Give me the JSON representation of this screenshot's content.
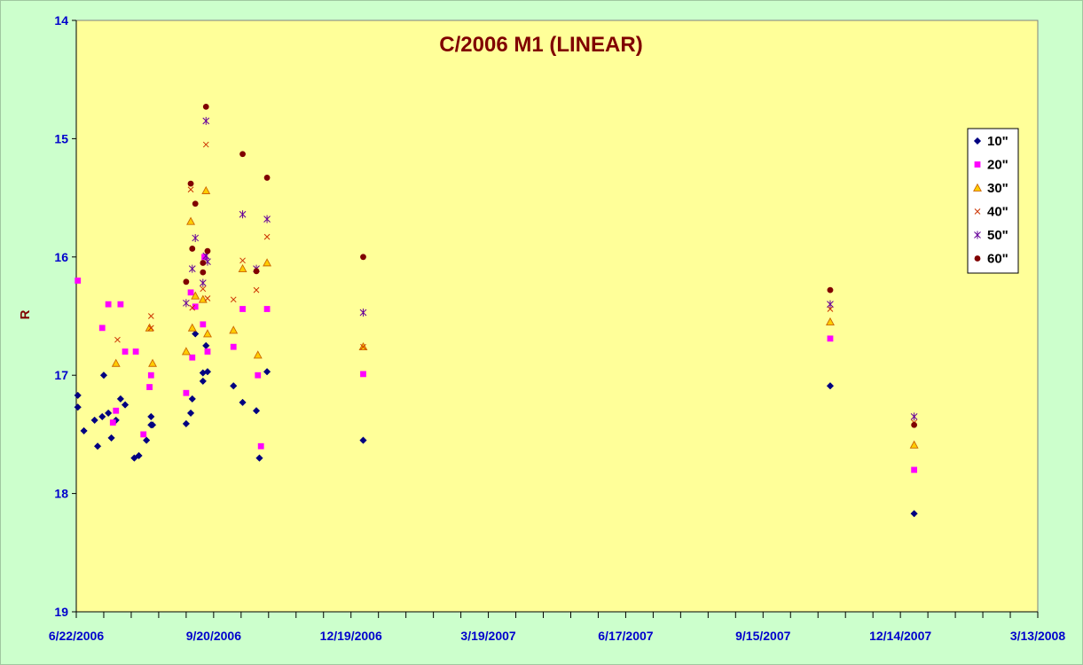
{
  "chart_data": {
    "type": "scatter",
    "title": "C/2006 M1 (LINEAR)",
    "xlabel": "",
    "ylabel": "R",
    "x_type": "date",
    "xlim": [
      "2006-06-22",
      "2008-03-13"
    ],
    "x_ticks": [
      "6/22/2006",
      "9/20/2006",
      "12/19/2006",
      "3/19/2007",
      "6/17/2007",
      "9/15/2007",
      "12/14/2007",
      "3/13/2008"
    ],
    "ylim": [
      14,
      19
    ],
    "y_inverted": true,
    "y_ticks": [
      "14",
      "15",
      "16",
      "17",
      "18",
      "19"
    ],
    "grid": false,
    "legend_position": "right",
    "colors": {
      "background": "#ccffcc",
      "plot_area": "#ffff99",
      "title": "#800000",
      "tick_labels": "#0000cc"
    },
    "series": [
      {
        "name": "10\"",
        "marker": "diamond",
        "color": "#000080",
        "points": [
          [
            "2006-06-23",
            17.17
          ],
          [
            "2006-06-23",
            17.27
          ],
          [
            "2006-06-27",
            17.47
          ],
          [
            "2006-07-04",
            17.38
          ],
          [
            "2006-07-06",
            17.6
          ],
          [
            "2006-07-09",
            17.35
          ],
          [
            "2006-07-10",
            17.0
          ],
          [
            "2006-07-13",
            17.32
          ],
          [
            "2006-07-15",
            17.53
          ],
          [
            "2006-07-18",
            17.38
          ],
          [
            "2006-07-21",
            17.2
          ],
          [
            "2006-07-24",
            17.25
          ],
          [
            "2006-07-30",
            17.7
          ],
          [
            "2006-08-02",
            17.68
          ],
          [
            "2006-08-07",
            17.55
          ],
          [
            "2006-08-10",
            17.35
          ],
          [
            "2006-08-10",
            17.42
          ],
          [
            "2006-08-11",
            17.42
          ],
          [
            "2006-09-02",
            17.41
          ],
          [
            "2006-09-05",
            17.32
          ],
          [
            "2006-09-06",
            17.2
          ],
          [
            "2006-09-08",
            16.65
          ],
          [
            "2006-09-13",
            17.05
          ],
          [
            "2006-09-13",
            16.98
          ],
          [
            "2006-09-15",
            16.75
          ],
          [
            "2006-09-16",
            16.97
          ],
          [
            "2006-10-03",
            17.09
          ],
          [
            "2006-10-09",
            17.23
          ],
          [
            "2006-10-18",
            17.3
          ],
          [
            "2006-10-20",
            17.7
          ],
          [
            "2006-10-25",
            16.97
          ],
          [
            "2006-12-27",
            17.55
          ],
          [
            "2007-10-29",
            17.09
          ],
          [
            "2007-12-23",
            18.17
          ]
        ]
      },
      {
        "name": "20\"",
        "marker": "square",
        "color": "#ff00ff",
        "points": [
          [
            "2006-06-23",
            16.2
          ],
          [
            "2006-07-09",
            16.6
          ],
          [
            "2006-07-13",
            16.4
          ],
          [
            "2006-07-16",
            17.4
          ],
          [
            "2006-07-18",
            17.3
          ],
          [
            "2006-07-21",
            16.4
          ],
          [
            "2006-07-24",
            16.8
          ],
          [
            "2006-07-31",
            16.8
          ],
          [
            "2006-08-05",
            17.5
          ],
          [
            "2006-08-09",
            17.1
          ],
          [
            "2006-08-10",
            17.0
          ],
          [
            "2006-09-02",
            17.15
          ],
          [
            "2006-09-05",
            16.3
          ],
          [
            "2006-09-06",
            16.85
          ],
          [
            "2006-09-08",
            16.42
          ],
          [
            "2006-09-13",
            16.57
          ],
          [
            "2006-09-14",
            16.0
          ],
          [
            "2006-09-16",
            16.8
          ],
          [
            "2006-10-03",
            16.76
          ],
          [
            "2006-10-09",
            16.44
          ],
          [
            "2006-10-19",
            17.0
          ],
          [
            "2006-10-21",
            17.6
          ],
          [
            "2006-10-25",
            16.44
          ],
          [
            "2006-12-27",
            16.99
          ],
          [
            "2007-10-29",
            16.69
          ],
          [
            "2007-12-23",
            17.8
          ]
        ]
      },
      {
        "name": "30\"",
        "marker": "triangle",
        "color": "#ffcc00",
        "stroke": "#cc6600",
        "points": [
          [
            "2006-07-18",
            16.9
          ],
          [
            "2006-08-09",
            16.6
          ],
          [
            "2006-08-11",
            16.9
          ],
          [
            "2006-09-02",
            16.8
          ],
          [
            "2006-09-05",
            15.7
          ],
          [
            "2006-09-06",
            16.6
          ],
          [
            "2006-09-08",
            16.33
          ],
          [
            "2006-09-13",
            16.36
          ],
          [
            "2006-09-15",
            15.44
          ],
          [
            "2006-09-16",
            16.65
          ],
          [
            "2006-10-03",
            16.62
          ],
          [
            "2006-10-09",
            16.1
          ],
          [
            "2006-10-19",
            16.83
          ],
          [
            "2006-10-25",
            16.05
          ],
          [
            "2006-12-27",
            16.76
          ],
          [
            "2007-10-29",
            16.55
          ],
          [
            "2007-12-23",
            17.59
          ]
        ]
      },
      {
        "name": "40\"",
        "marker": "x",
        "color": "#cc3300",
        "points": [
          [
            "2006-07-19",
            16.7
          ],
          [
            "2006-08-10",
            16.5
          ],
          [
            "2006-08-10",
            16.6
          ],
          [
            "2006-09-05",
            15.43
          ],
          [
            "2006-09-06",
            16.43
          ],
          [
            "2006-09-13",
            16.27
          ],
          [
            "2006-09-15",
            15.05
          ],
          [
            "2006-09-16",
            16.35
          ],
          [
            "2006-10-03",
            16.36
          ],
          [
            "2006-10-09",
            16.03
          ],
          [
            "2006-10-18",
            16.28
          ],
          [
            "2006-10-25",
            15.83
          ],
          [
            "2006-12-27",
            16.76
          ],
          [
            "2007-10-29",
            16.44
          ],
          [
            "2007-12-23",
            17.4
          ]
        ]
      },
      {
        "name": "50\"",
        "marker": "star",
        "color": "#660099",
        "points": [
          [
            "2006-09-02",
            16.39
          ],
          [
            "2006-09-06",
            16.1
          ],
          [
            "2006-09-08",
            15.84
          ],
          [
            "2006-09-13",
            16.22
          ],
          [
            "2006-09-15",
            14.85
          ],
          [
            "2006-09-15",
            15.99
          ],
          [
            "2006-09-16",
            16.04
          ],
          [
            "2006-10-09",
            15.64
          ],
          [
            "2006-10-18",
            16.1
          ],
          [
            "2006-10-25",
            15.68
          ],
          [
            "2006-12-27",
            16.47
          ],
          [
            "2007-10-29",
            16.4
          ],
          [
            "2007-12-23",
            17.35
          ]
        ]
      },
      {
        "name": "60\"",
        "marker": "circle",
        "color": "#800000",
        "points": [
          [
            "2006-09-02",
            16.21
          ],
          [
            "2006-09-05",
            15.38
          ],
          [
            "2006-09-06",
            15.93
          ],
          [
            "2006-09-08",
            15.55
          ],
          [
            "2006-09-13",
            16.05
          ],
          [
            "2006-09-13",
            16.13
          ],
          [
            "2006-09-15",
            14.73
          ],
          [
            "2006-09-16",
            15.95
          ],
          [
            "2006-10-09",
            15.13
          ],
          [
            "2006-10-18",
            16.12
          ],
          [
            "2006-10-25",
            15.33
          ],
          [
            "2006-12-27",
            16.0
          ],
          [
            "2007-10-29",
            16.28
          ],
          [
            "2007-12-23",
            17.42
          ]
        ]
      }
    ]
  }
}
